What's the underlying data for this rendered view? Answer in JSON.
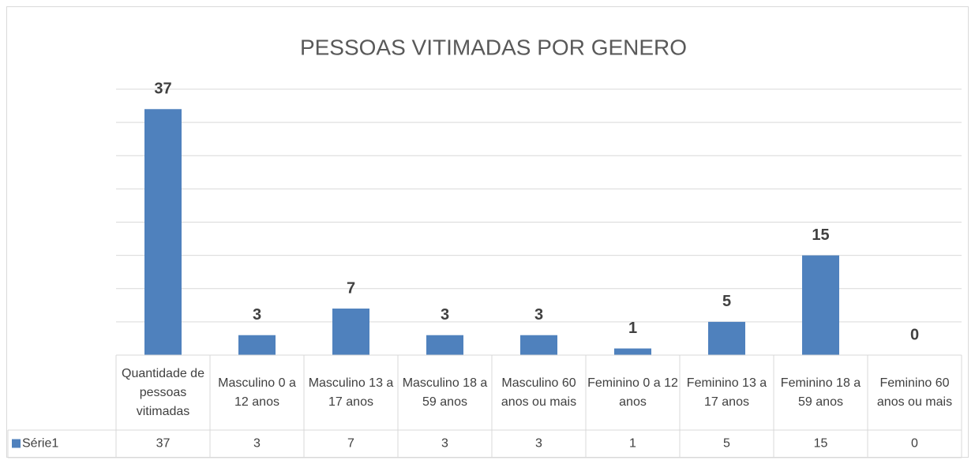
{
  "chart_data": {
    "type": "bar",
    "title": "PESSOAS VITIMADAS POR GENERO",
    "categories": [
      "Quantidade de pessoas vitimadas",
      "Masculino 0 a 12 anos",
      "Masculino 13 a 17 anos",
      "Masculino 18 a 59 anos",
      "Masculino 60 anos ou mais",
      "Feminino 0 a 12 anos",
      "Feminino 13 a 17 anos",
      "Feminino 18 a 59 anos",
      "Feminino 60 anos ou mais"
    ],
    "series": [
      {
        "name": "Série1",
        "color": "#4f81bd",
        "values": [
          37,
          3,
          7,
          3,
          3,
          1,
          5,
          15,
          0
        ]
      }
    ],
    "ylim": [
      0,
      40
    ],
    "yticks": [
      0,
      5,
      10,
      15,
      20,
      25,
      30,
      35,
      40
    ],
    "grid": true,
    "data_table": true
  }
}
